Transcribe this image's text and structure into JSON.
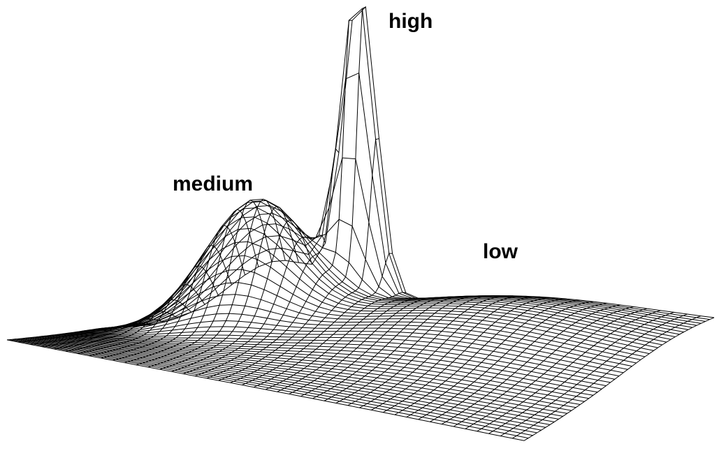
{
  "labels": {
    "high": "high",
    "medium": "medium",
    "low": "low"
  },
  "colors": {
    "background": "#ffffff",
    "mesh_line": "#000000"
  }
}
